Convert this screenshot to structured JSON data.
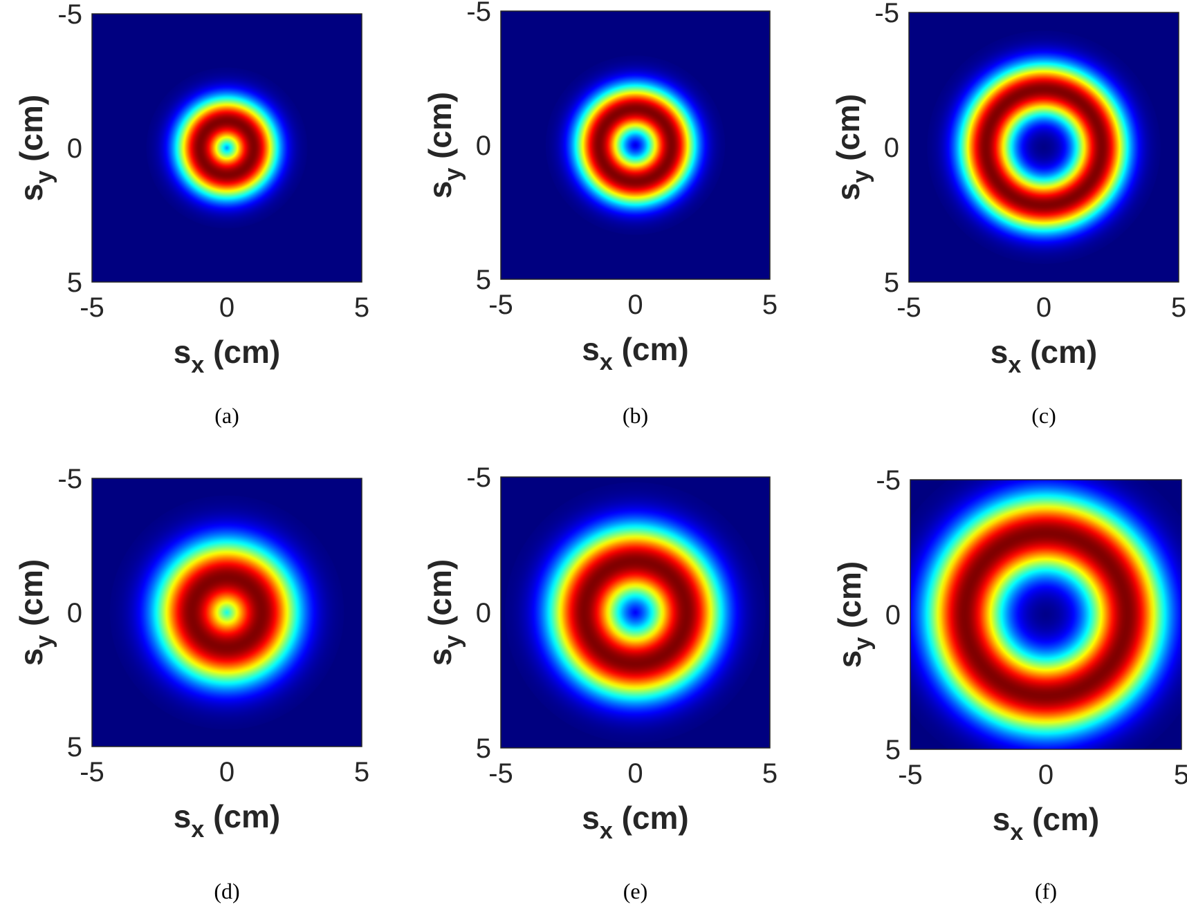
{
  "chart_data": [
    {
      "type": "heatmap",
      "panel_label": "(a)",
      "xlabel": "s",
      "xlabel_sub": "x",
      "ylabel": "s",
      "ylabel_sub": "y",
      "label_unit": "(cm)",
      "xlim": [
        -5,
        5
      ],
      "ylim": [
        -5,
        5
      ],
      "y_reversed": true,
      "xticks": [
        "-5",
        "0",
        "5"
      ],
      "yticks": [
        "-5",
        "0",
        "5"
      ],
      "colormap": "jet",
      "ring_center_cm": [
        0,
        0
      ],
      "ring_peak_radius_cm": 1.0,
      "ring_width_cm": 0.62
    },
    {
      "type": "heatmap",
      "panel_label": "(b)",
      "xlabel": "s",
      "xlabel_sub": "x",
      "ylabel": "s",
      "ylabel_sub": "y",
      "label_unit": "(cm)",
      "xlim": [
        -5,
        5
      ],
      "ylim": [
        -5,
        5
      ],
      "y_reversed": true,
      "xticks": [
        "-5",
        "0",
        "5"
      ],
      "yticks": [
        "-5",
        "0",
        "5"
      ],
      "colormap": "jet",
      "ring_center_cm": [
        0,
        0
      ],
      "ring_peak_radius_cm": 1.35,
      "ring_width_cm": 0.62
    },
    {
      "type": "heatmap",
      "panel_label": "(c)",
      "xlabel": "s",
      "xlabel_sub": "x",
      "ylabel": "s",
      "ylabel_sub": "y",
      "label_unit": "(cm)",
      "xlim": [
        -5,
        5
      ],
      "ylim": [
        -5,
        5
      ],
      "y_reversed": true,
      "xticks": [
        "-5",
        "0",
        "5"
      ],
      "yticks": [
        "-5",
        "0",
        "5"
      ],
      "colormap": "jet",
      "ring_center_cm": [
        0,
        0
      ],
      "ring_peak_radius_cm": 2.15,
      "ring_width_cm": 0.68
    },
    {
      "type": "heatmap",
      "panel_label": "(d)",
      "xlabel": "s",
      "xlabel_sub": "x",
      "ylabel": "s",
      "ylabel_sub": "y",
      "label_unit": "(cm)",
      "xlim": [
        -5,
        5
      ],
      "ylim": [
        -5,
        5
      ],
      "y_reversed": true,
      "xticks": [
        "-5",
        "0",
        "5"
      ],
      "yticks": [
        "-5",
        "0",
        "5"
      ],
      "colormap": "jet",
      "ring_center_cm": [
        0,
        0
      ],
      "ring_peak_radius_cm": 1.3,
      "ring_width_cm": 0.95
    },
    {
      "type": "heatmap",
      "panel_label": "(e)",
      "xlabel": "s",
      "xlabel_sub": "x",
      "ylabel": "s",
      "ylabel_sub": "y",
      "label_unit": "(cm)",
      "xlim": [
        -5,
        5
      ],
      "ylim": [
        -5,
        5
      ],
      "y_reversed": true,
      "xticks": [
        "-5",
        "0",
        "5"
      ],
      "yticks": [
        "-5",
        "0",
        "5"
      ],
      "colormap": "jet",
      "ring_center_cm": [
        0,
        0
      ],
      "ring_peak_radius_cm": 1.9,
      "ring_width_cm": 0.92
    },
    {
      "type": "heatmap",
      "panel_label": "(f)",
      "xlabel": "s",
      "xlabel_sub": "x",
      "ylabel": "s",
      "ylabel_sub": "y",
      "label_unit": "(cm)",
      "xlim": [
        -5,
        5
      ],
      "ylim": [
        -5,
        5
      ],
      "y_reversed": true,
      "xticks": [
        "-5",
        "0",
        "5"
      ],
      "yticks": [
        "-5",
        "0",
        "5"
      ],
      "colormap": "jet",
      "ring_center_cm": [
        0,
        0
      ],
      "ring_peak_radius_cm": 3.0,
      "ring_width_cm": 0.98
    }
  ]
}
